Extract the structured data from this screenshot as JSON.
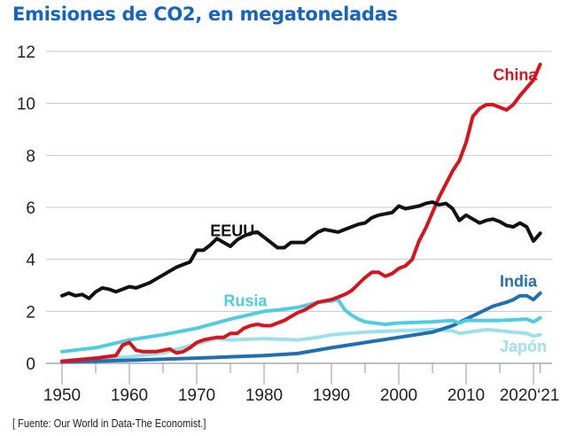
{
  "chart_data": {
    "type": "line",
    "title": "Emisiones de CO2, en megatoneladas",
    "source": "[ Fuente: Our World in Data-The Economist.]",
    "xlabel": "",
    "ylabel": "",
    "ylim": [
      0,
      12
    ],
    "xlim": [
      1950,
      2021
    ],
    "yticks": [
      0,
      2,
      4,
      6,
      8,
      10,
      12
    ],
    "xticks": [
      {
        "value": 1950,
        "label": "1950"
      },
      {
        "value": 1960,
        "label": "1960"
      },
      {
        "value": 1970,
        "label": "1970"
      },
      {
        "value": 1980,
        "label": "1980"
      },
      {
        "value": 1990,
        "label": "1990"
      },
      {
        "value": 2000,
        "label": "2000"
      },
      {
        "value": 2010,
        "label": "2010"
      },
      {
        "value": 2020,
        "label": "2020"
      },
      {
        "value": 2021,
        "label": "‘21"
      }
    ],
    "grid": true,
    "series": [
      {
        "name": "EEUU",
        "color": "#111111",
        "label_at": [
          1972,
          4.9
        ],
        "x": [
          1950,
          1951,
          1952,
          1953,
          1954,
          1955,
          1956,
          1957,
          1958,
          1959,
          1960,
          1961,
          1962,
          1963,
          1964,
          1965,
          1966,
          1967,
          1968,
          1969,
          1970,
          1971,
          1972,
          1973,
          1974,
          1975,
          1976,
          1977,
          1978,
          1979,
          1980,
          1981,
          1982,
          1983,
          1984,
          1985,
          1986,
          1987,
          1988,
          1989,
          1990,
          1991,
          1992,
          1993,
          1994,
          1995,
          1996,
          1997,
          1998,
          1999,
          2000,
          2001,
          2002,
          2003,
          2004,
          2005,
          2006,
          2007,
          2008,
          2009,
          2010,
          2011,
          2012,
          2013,
          2014,
          2015,
          2016,
          2017,
          2018,
          2019,
          2020,
          2021
        ],
        "values": [
          2.6,
          2.7,
          2.6,
          2.65,
          2.5,
          2.75,
          2.9,
          2.85,
          2.75,
          2.85,
          2.95,
          2.9,
          3.0,
          3.1,
          3.25,
          3.4,
          3.55,
          3.7,
          3.8,
          3.9,
          4.35,
          4.35,
          4.55,
          4.8,
          4.65,
          4.5,
          4.75,
          4.9,
          5.0,
          5.05,
          4.85,
          4.65,
          4.45,
          4.45,
          4.65,
          4.65,
          4.65,
          4.85,
          5.05,
          5.15,
          5.1,
          5.05,
          5.15,
          5.25,
          5.35,
          5.4,
          5.6,
          5.7,
          5.75,
          5.8,
          6.05,
          5.95,
          6.0,
          6.05,
          6.15,
          6.2,
          6.1,
          6.15,
          5.95,
          5.5,
          5.7,
          5.55,
          5.4,
          5.5,
          5.55,
          5.45,
          5.3,
          5.25,
          5.4,
          5.25,
          4.7,
          5.0
        ]
      },
      {
        "name": "China",
        "color": "#d7141e",
        "label_at": [
          2014,
          10.9
        ],
        "x": [
          1950,
          1955,
          1958,
          1959,
          1960,
          1961,
          1962,
          1963,
          1964,
          1965,
          1966,
          1967,
          1968,
          1969,
          1970,
          1971,
          1972,
          1973,
          1974,
          1975,
          1976,
          1977,
          1978,
          1979,
          1980,
          1981,
          1982,
          1983,
          1984,
          1985,
          1986,
          1987,
          1988,
          1989,
          1990,
          1991,
          1992,
          1993,
          1994,
          1995,
          1996,
          1997,
          1998,
          1999,
          2000,
          2001,
          2002,
          2003,
          2004,
          2005,
          2006,
          2007,
          2008,
          2009,
          2010,
          2011,
          2012,
          2013,
          2014,
          2015,
          2016,
          2017,
          2018,
          2019,
          2020,
          2021
        ],
        "values": [
          0.08,
          0.2,
          0.3,
          0.7,
          0.8,
          0.5,
          0.45,
          0.45,
          0.45,
          0.5,
          0.55,
          0.4,
          0.45,
          0.6,
          0.8,
          0.9,
          0.95,
          1.0,
          1.0,
          1.15,
          1.15,
          1.35,
          1.45,
          1.5,
          1.45,
          1.45,
          1.55,
          1.65,
          1.8,
          1.95,
          2.05,
          2.2,
          2.35,
          2.4,
          2.45,
          2.55,
          2.65,
          2.8,
          3.05,
          3.3,
          3.5,
          3.5,
          3.35,
          3.45,
          3.65,
          3.75,
          4.0,
          4.7,
          5.2,
          5.8,
          6.4,
          6.9,
          7.4,
          7.8,
          8.5,
          9.5,
          9.8,
          9.95,
          9.95,
          9.85,
          9.75,
          9.95,
          10.3,
          10.6,
          10.9,
          11.5
        ]
      },
      {
        "name": "Rusia",
        "color": "#4fcde0",
        "label_at": [
          1974,
          2.2
        ],
        "x": [
          1950,
          1955,
          1960,
          1965,
          1970,
          1975,
          1980,
          1982,
          1985,
          1988,
          1990,
          1991,
          1992,
          1993,
          1994,
          1995,
          1998,
          2000,
          2005,
          2008,
          2009,
          2010,
          2015,
          2019,
          2020,
          2021
        ],
        "values": [
          0.45,
          0.6,
          0.9,
          1.1,
          1.35,
          1.7,
          2.0,
          2.05,
          2.15,
          2.35,
          2.4,
          2.45,
          2.05,
          1.85,
          1.7,
          1.6,
          1.5,
          1.55,
          1.6,
          1.65,
          1.55,
          1.65,
          1.65,
          1.7,
          1.6,
          1.75
        ]
      },
      {
        "name": "India",
        "color": "#1f6fb5",
        "label_at": [
          2015,
          2.95
        ],
        "x": [
          1950,
          1960,
          1970,
          1980,
          1985,
          1990,
          1995,
          2000,
          2005,
          2008,
          2010,
          2012,
          2014,
          2016,
          2017,
          2018,
          2019,
          2020,
          2021
        ],
        "values": [
          0.05,
          0.12,
          0.2,
          0.3,
          0.38,
          0.6,
          0.8,
          1.0,
          1.2,
          1.45,
          1.7,
          1.95,
          2.2,
          2.35,
          2.45,
          2.6,
          2.6,
          2.45,
          2.7
        ]
      },
      {
        "name": "Japón",
        "color": "#9de0ea",
        "label_at": [
          2015,
          0.45
        ],
        "x": [
          1950,
          1955,
          1960,
          1965,
          1970,
          1973,
          1975,
          1980,
          1985,
          1988,
          1990,
          1995,
          2000,
          2005,
          2008,
          2009,
          2013,
          2015,
          2019,
          2020,
          2021
        ],
        "values": [
          0.1,
          0.2,
          0.25,
          0.4,
          0.75,
          0.95,
          0.9,
          0.95,
          0.9,
          1.0,
          1.1,
          1.2,
          1.25,
          1.3,
          1.25,
          1.15,
          1.3,
          1.25,
          1.15,
          1.05,
          1.1
        ]
      }
    ]
  }
}
